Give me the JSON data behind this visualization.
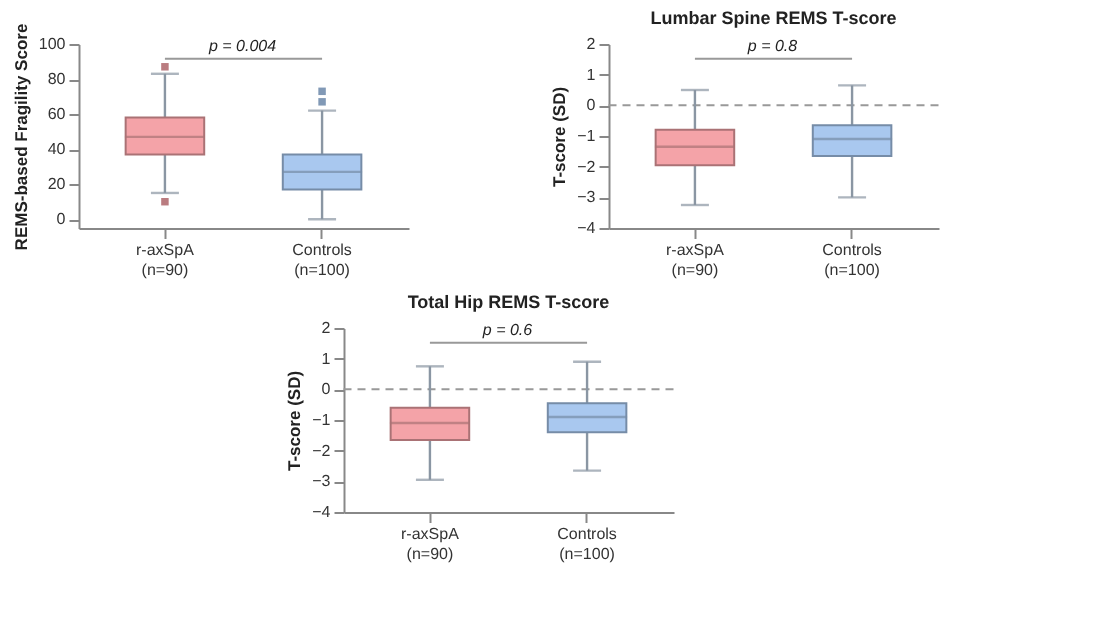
{
  "chart_data": [
    {
      "type": "box",
      "ylabel": "REMS-based Fragility Score",
      "categories": [
        "r-axSpA\n(n=90)",
        "Controls\n(n=100)"
      ],
      "colors": [
        "#f4a3a8",
        "#a9c8ef"
      ],
      "ylim": [
        -5,
        100
      ],
      "yticks": [
        0,
        20,
        40,
        60,
        80,
        100
      ],
      "grid": false,
      "annotations": [
        "p = 0.004"
      ],
      "boxes": [
        {
          "low": 15,
          "q1": 37,
          "median": 47,
          "q3": 58,
          "high": 83,
          "outliers": [
            87,
            10
          ]
        },
        {
          "low": 0,
          "q1": 17,
          "median": 27,
          "q3": 37,
          "high": 62,
          "outliers": [
            67,
            73
          ]
        }
      ]
    },
    {
      "type": "box",
      "title": "Lumbar Spine REMS T-score",
      "ylabel": "T-score (SD)",
      "categories": [
        "r-axSpA\n(n=90)",
        "Controls\n(n=100)"
      ],
      "colors": [
        "#f4a3a8",
        "#a9c8ef"
      ],
      "ylim": [
        -4,
        2
      ],
      "yticks": [
        -4,
        -3,
        -2,
        -1,
        0,
        1,
        2
      ],
      "grid": false,
      "annotations": [
        "p = 0.8"
      ],
      "ref_lines": [
        {
          "axis": "y",
          "value": 0,
          "line_style": "dashed",
          "color": "#999999"
        }
      ],
      "boxes": [
        {
          "low": -3.25,
          "q1": -1.95,
          "median": -1.35,
          "q3": -0.8,
          "high": 0.5
        },
        {
          "low": -3.0,
          "q1": -1.65,
          "median": -1.1,
          "q3": -0.65,
          "high": 0.65
        }
      ]
    },
    {
      "type": "box",
      "title": "Total Hip REMS T-score",
      "ylabel": "T-score (SD)",
      "categories": [
        "r-axSpA\n(n=90)",
        "Controls\n(n=100)"
      ],
      "colors": [
        "#f4a3a8",
        "#a9c8ef"
      ],
      "ylim": [
        -4,
        2
      ],
      "yticks": [
        -4,
        -3,
        -2,
        -1,
        0,
        1,
        2
      ],
      "grid": false,
      "annotations": [
        "p = 0.6"
      ],
      "ref_lines": [
        {
          "axis": "y",
          "value": 0,
          "line_style": "dashed",
          "color": "#999999"
        }
      ],
      "boxes": [
        {
          "low": -2.95,
          "q1": -1.65,
          "median": -1.1,
          "q3": -0.6,
          "high": 0.75
        },
        {
          "low": -2.65,
          "q1": -1.4,
          "median": -0.9,
          "q3": -0.45,
          "high": 0.9
        }
      ]
    }
  ]
}
